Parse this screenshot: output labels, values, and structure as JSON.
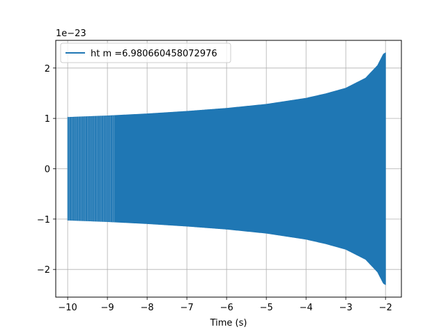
{
  "chart_data": {
    "type": "line",
    "title": "",
    "xlabel": "Time (s)",
    "ylabel": "",
    "y_offset_label": "1e−23",
    "xlim": [
      -10.3,
      -1.6
    ],
    "ylim": [
      -2.55,
      2.55
    ],
    "xticks": [
      -10,
      -9,
      -8,
      -7,
      -6,
      -5,
      -4,
      -3,
      -2
    ],
    "xtick_labels": [
      "−10",
      "−9",
      "−8",
      "−7",
      "−6",
      "−5",
      "−4",
      "−3",
      "−2"
    ],
    "yticks": [
      -2,
      -1,
      0,
      1,
      2
    ],
    "ytick_labels": [
      "−2",
      "−1",
      "0",
      "1",
      "2"
    ],
    "grid": true,
    "legend_position": "top-left",
    "series": [
      {
        "name": "ht m =6.980660458072976",
        "color": "#1f77b4",
        "x_range": [
          -10,
          -2
        ],
        "description_envelope": {
          "x": [
            -10.0,
            -9.0,
            -8.0,
            -7.0,
            -6.0,
            -5.0,
            -4.0,
            -3.5,
            -3.0,
            -2.5,
            -2.2,
            -2.05,
            -2.0
          ],
          "upper": [
            1.02,
            1.05,
            1.09,
            1.14,
            1.2,
            1.28,
            1.4,
            1.49,
            1.6,
            1.8,
            2.05,
            2.28,
            2.3
          ],
          "lower": [
            -1.02,
            -1.05,
            -1.09,
            -1.14,
            -1.2,
            -1.28,
            -1.4,
            -1.49,
            -1.6,
            -1.8,
            -2.05,
            -2.28,
            -2.3
          ]
        }
      }
    ]
  }
}
